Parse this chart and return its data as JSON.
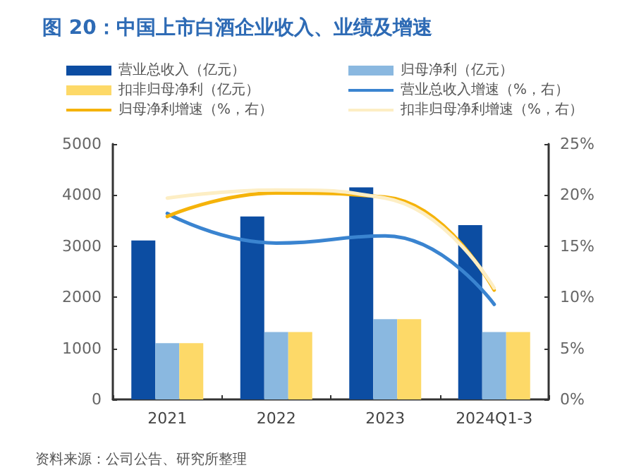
{
  "chart_data": {
    "type": "bar",
    "title": "图 20：中国上市白酒企业收入、业绩及增速",
    "categories": [
      "2021",
      "2022",
      "2023",
      "2024Q1-3"
    ],
    "series": [
      {
        "name": "营业总收入（亿元）",
        "color": "#0c4da2",
        "values": [
          3110,
          3580,
          4150,
          3410
        ]
      },
      {
        "name": "归母净利（亿元）",
        "color": "#8ab8e0",
        "values": [
          1100,
          1320,
          1570,
          1320
        ]
      },
      {
        "name": "扣非归母净利（亿元）",
        "color": "#fdd968",
        "values": [
          1100,
          1320,
          1570,
          1320
        ]
      },
      {
        "name": "营业总收入增速（%，右）",
        "type": "line",
        "axis": "y2",
        "color": "#3a84d0",
        "values": [
          18.2,
          15.3,
          16.0,
          9.3
        ]
      },
      {
        "name": "归母净利增速（%，右）",
        "type": "line",
        "axis": "y2",
        "color": "#f5b30a",
        "values": [
          17.9,
          20.2,
          19.8,
          10.7
        ]
      },
      {
        "name": "扣非归母净利增速（%，右）",
        "type": "line",
        "axis": "y2",
        "color": "#fdeec4",
        "values": [
          19.7,
          20.5,
          19.7,
          10.9
        ]
      }
    ],
    "ylim": [
      0,
      5000
    ],
    "yticks": [
      0,
      1000,
      2000,
      3000,
      4000,
      5000
    ],
    "y2lim": [
      0,
      25
    ],
    "y2ticks": [
      {
        "value": 0,
        "label": "0%"
      },
      {
        "value": 5,
        "label": "5%"
      },
      {
        "value": 10,
        "label": "10%"
      },
      {
        "value": 15,
        "label": "15%"
      },
      {
        "value": 20,
        "label": "20%"
      },
      {
        "value": 25,
        "label": "25%"
      }
    ],
    "legend": "top",
    "grid": false,
    "marker": "none",
    "line_style": "solid",
    "annotations": [
      "资料来源：公司公告、研究所整理"
    ]
  }
}
